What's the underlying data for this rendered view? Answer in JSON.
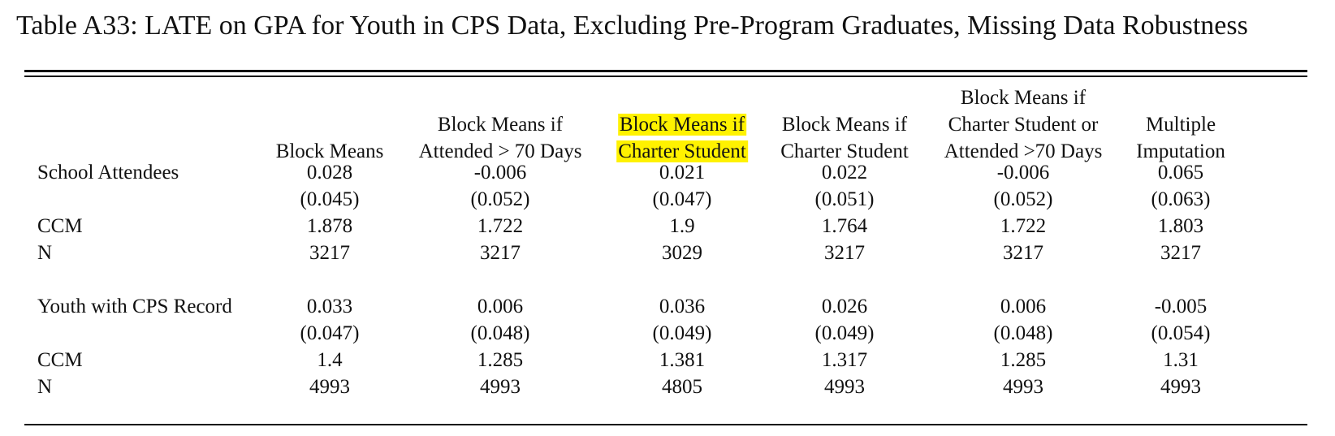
{
  "title": "Table A33: LATE on GPA for Youth in CPS Data, Excluding Pre-Program Graduates, Missing Data Robustness",
  "columns": [
    {
      "lines": [
        "Block Means"
      ],
      "highlight": false
    },
    {
      "lines": [
        "Block Means if",
        "Attended > 70 Days"
      ],
      "highlight": false
    },
    {
      "lines": [
        "Block Means if",
        "Charter Student"
      ],
      "highlight": true
    },
    {
      "lines": [
        "Block Means if",
        "Charter Student"
      ],
      "highlight": false
    },
    {
      "lines": [
        "Block Means if",
        "Charter Student or",
        "Attended >70 Days"
      ],
      "highlight": false
    },
    {
      "lines": [
        "Multiple",
        "Imputation"
      ],
      "highlight": false
    }
  ],
  "highlight_color": "#fff200",
  "panels": [
    {
      "label": "School Attendees",
      "estimates": [
        "0.028",
        "-0.006",
        "0.021",
        "0.022",
        "-0.006",
        "0.065"
      ],
      "std_errors": [
        "(0.045)",
        "(0.052)",
        "(0.047)",
        "(0.051)",
        "(0.052)",
        "(0.063)"
      ],
      "ccm_label": "CCM",
      "ccm": [
        "1.878",
        "1.722",
        "1.9",
        "1.764",
        "1.722",
        "1.803"
      ],
      "n_label": "N",
      "n": [
        "3217",
        "3217",
        "3029",
        "3217",
        "3217",
        "3217"
      ]
    },
    {
      "label": "Youth with CPS Record",
      "estimates": [
        "0.033",
        "0.006",
        "0.036",
        "0.026",
        "0.006",
        "-0.005"
      ],
      "std_errors": [
        "(0.047)",
        "(0.048)",
        "(0.049)",
        "(0.049)",
        "(0.048)",
        "(0.054)"
      ],
      "ccm_label": "CCM",
      "ccm": [
        "1.4",
        "1.285",
        "1.381",
        "1.317",
        "1.285",
        "1.31"
      ],
      "n_label": "N",
      "n": [
        "4993",
        "4993",
        "4805",
        "4993",
        "4993",
        "4993"
      ]
    }
  ]
}
